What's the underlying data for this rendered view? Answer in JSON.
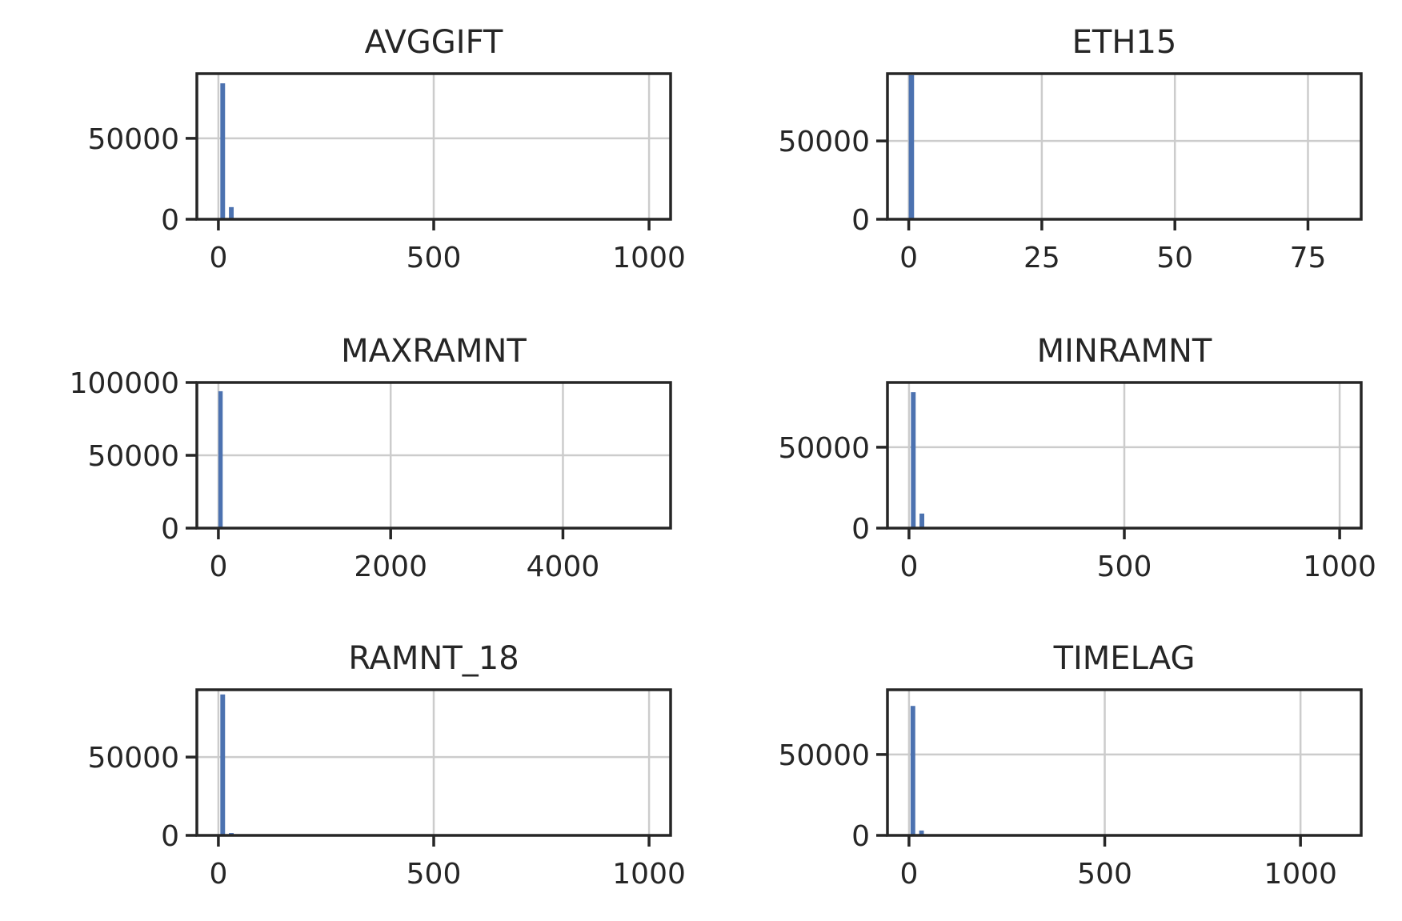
{
  "chart_data": [
    {
      "type": "bar",
      "title": "AVGGIFT",
      "xlim": [
        -50,
        1050
      ],
      "ylim": [
        0,
        90000
      ],
      "xticks": [
        0,
        500,
        1000
      ],
      "yticks": [
        0,
        50000
      ],
      "bar_width": 11,
      "bars": [
        {
          "x": 10,
          "value": 84000
        },
        {
          "x": 30,
          "value": 7500
        }
      ],
      "color": "#4c72b0"
    },
    {
      "type": "bar",
      "title": "ETH15",
      "xlim": [
        -4,
        85
      ],
      "ylim": [
        0,
        93000
      ],
      "xticks": [
        0,
        25,
        50,
        75
      ],
      "yticks": [
        0,
        50000
      ],
      "bar_width": 1,
      "bars": [
        {
          "x": 0.5,
          "value": 92000
        }
      ],
      "color": "#4c72b0"
    },
    {
      "type": "bar",
      "title": "MAXRAMNT",
      "xlim": [
        -250,
        5250
      ],
      "ylim": [
        0,
        100000
      ],
      "xticks": [
        0,
        2000,
        4000
      ],
      "yticks": [
        0,
        50000,
        100000
      ],
      "bar_width": 50,
      "bars": [
        {
          "x": 25,
          "value": 94000
        }
      ],
      "color": "#4c72b0"
    },
    {
      "type": "bar",
      "title": "MINRAMNT",
      "xlim": [
        -50,
        1050
      ],
      "ylim": [
        0,
        90000
      ],
      "xticks": [
        0,
        500,
        1000
      ],
      "yticks": [
        0,
        50000
      ],
      "bar_width": 11,
      "bars": [
        {
          "x": 10,
          "value": 84000
        },
        {
          "x": 30,
          "value": 9000
        }
      ],
      "color": "#4c72b0"
    },
    {
      "type": "bar",
      "title": "RAMNT_18",
      "xlim": [
        -50,
        1050
      ],
      "ylim": [
        0,
        93000
      ],
      "xticks": [
        0,
        500,
        1000
      ],
      "yticks": [
        0,
        50000
      ],
      "bar_width": 11,
      "bars": [
        {
          "x": 10,
          "value": 90000
        },
        {
          "x": 30,
          "value": 1500
        }
      ],
      "color": "#4c72b0"
    },
    {
      "type": "bar",
      "title": "TIMELAG",
      "xlim": [
        -55,
        1155
      ],
      "ylim": [
        0,
        90000
      ],
      "xticks": [
        0,
        500,
        1000
      ],
      "yticks": [
        0,
        50000
      ],
      "bar_width": 12,
      "bars": [
        {
          "x": 10,
          "value": 80000
        },
        {
          "x": 32,
          "value": 3000
        }
      ],
      "color": "#4c72b0"
    }
  ]
}
